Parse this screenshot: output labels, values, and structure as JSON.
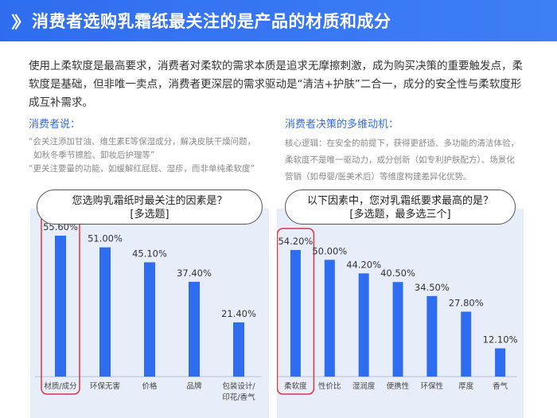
{
  "header": {
    "chevron": "〉〉",
    "title": "消费者选购乳霜纸最关注的是产品的材质和成分"
  },
  "intro": "使用上柔软度是最高要求，消费者对柔软的需求本质是追求无摩擦刺激，成为购买决策的重要触发点，柔软度是基础，但非唯一卖点，消费者更深层的需求驱动是“清洁+护肤”二合一，成分的安全性与柔软度形成互补需求。",
  "consumer_quotes": {
    "title": "消费者说：",
    "lines": [
      "“会关注添加甘油、维生素E等保湿成分，解决皮肤干燥问题，",
      "如秋冬季节擦脸、卸妆后护理等”",
      "“更关注要量的功能，如缓解红屁屁、湿疹，而非单纯柔软度”"
    ]
  },
  "decision_logic": {
    "title": "消费者决策的多维动机：",
    "lines": [
      "核心逻辑：在安全的前提下，获得更舒适、多功能的清洁体验，",
      "柔软度不是唯一驱动力，成分创新（如专利护肤配方）、场景化",
      "营销（如母婴/医美术后）等维度构建差异化优势。"
    ]
  },
  "chart_data": [
    {
      "type": "bar",
      "title_line1": "您选购乳霜纸时最关注的因素是？",
      "title_line2": "[多选题]",
      "categories": [
        "材质/成分",
        "环保无害",
        "价格",
        "品牌",
        "包装设计/印花/香气"
      ],
      "category_lines": [
        [
          "材质/成分"
        ],
        [
          "环保无害"
        ],
        [
          "价格"
        ],
        [
          "品牌"
        ],
        [
          "包装设计/",
          "印花/香气"
        ]
      ],
      "values": [
        55.6,
        51.0,
        45.1,
        37.4,
        21.4
      ],
      "value_labels": [
        "55.60%",
        "51.00%",
        "45.10%",
        "37.40%",
        "21.40%"
      ],
      "highlight_index": 0,
      "ylim": [
        0,
        60
      ],
      "bar_color": "#2f6df0",
      "highlight_color": "#d9363e"
    },
    {
      "type": "bar",
      "title_line1": "以下因素中，您对乳霜纸要求最高的是？",
      "title_line2": "[多选题，最多选三个]",
      "categories": [
        "柔软度",
        "性价比",
        "湿润度",
        "便携性",
        "环保性",
        "厚度",
        "香气"
      ],
      "category_lines": [
        [
          "柔软度"
        ],
        [
          "性价比"
        ],
        [
          "湿润度"
        ],
        [
          "便携性"
        ],
        [
          "环保性"
        ],
        [
          "厚度"
        ],
        [
          "香气"
        ]
      ],
      "values": [
        54.2,
        50.0,
        44.2,
        40.5,
        34.5,
        27.8,
        12.1
      ],
      "value_labels": [
        "54.20%",
        "50.00%",
        "44.20%",
        "40.50%",
        "34.50%",
        "27.80%",
        "12.10%"
      ],
      "highlight_index": 0,
      "ylim": [
        0,
        60
      ],
      "bar_color": "#2f6df0",
      "highlight_color": "#d9363e"
    }
  ]
}
